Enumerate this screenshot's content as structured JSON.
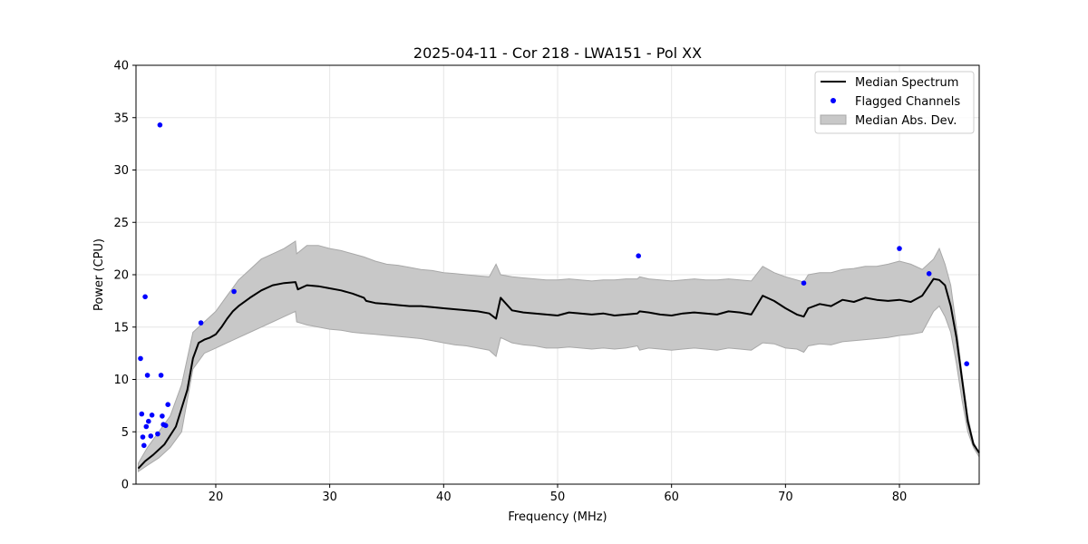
{
  "chart_data": {
    "type": "line",
    "title": "2025-04-11 - Cor 218 - LWA151 - Pol XX",
    "xlabel": "Frequency (MHz)",
    "ylabel": "Power (CPU)",
    "xlim": [
      13,
      87
    ],
    "ylim": [
      0,
      40
    ],
    "xticks": [
      20,
      30,
      40,
      50,
      60,
      70,
      80
    ],
    "yticks": [
      0,
      5,
      10,
      15,
      20,
      25,
      30,
      35,
      40
    ],
    "grid": true,
    "legend_position": "top-right",
    "colors": {
      "median": "#000000",
      "flagged": "#0000ff",
      "band_fill": "#c8c8c8",
      "band_edge": "#a8a8a8",
      "grid": "#e6e6e6"
    },
    "series": [
      {
        "name": "Median Spectrum",
        "kind": "line",
        "x": [
          13.2,
          13.8,
          14.5,
          15.5,
          16.5,
          17.5,
          18.0,
          18.5,
          19.0,
          19.5,
          20.0,
          20.5,
          21.0,
          21.5,
          22.0,
          23.0,
          24.0,
          25.0,
          26.0,
          27.0,
          27.2,
          28.0,
          29.0,
          30.0,
          31.0,
          32.0,
          33.0,
          33.2,
          34.0,
          35.0,
          36.0,
          37.0,
          38.0,
          39.0,
          40.0,
          41.0,
          42.0,
          43.0,
          44.0,
          44.6,
          45.0,
          46.0,
          47.0,
          48.0,
          49.0,
          50.0,
          51.0,
          52.0,
          53.0,
          54.0,
          55.0,
          56.0,
          57.0,
          57.2,
          58.0,
          59.0,
          60.0,
          61.0,
          62.0,
          63.0,
          64.0,
          65.0,
          66.0,
          67.0,
          68.0,
          69.0,
          70.0,
          71.0,
          71.6,
          72.0,
          73.0,
          74.0,
          75.0,
          76.0,
          77.0,
          78.0,
          79.0,
          80.0,
          81.0,
          82.0,
          83.0,
          83.5,
          84.0,
          84.5,
          85.0,
          85.5,
          86.0,
          86.5,
          87.0
        ],
        "y": [
          1.5,
          2.2,
          2.8,
          3.8,
          5.5,
          9.0,
          12.0,
          13.5,
          13.8,
          14.0,
          14.3,
          15.0,
          15.8,
          16.5,
          17.0,
          17.8,
          18.5,
          19.0,
          19.2,
          19.3,
          18.6,
          19.0,
          18.9,
          18.7,
          18.5,
          18.2,
          17.8,
          17.5,
          17.3,
          17.2,
          17.1,
          17.0,
          17.0,
          16.9,
          16.8,
          16.7,
          16.6,
          16.5,
          16.3,
          15.8,
          17.8,
          16.6,
          16.4,
          16.3,
          16.2,
          16.1,
          16.4,
          16.3,
          16.2,
          16.3,
          16.1,
          16.2,
          16.3,
          16.5,
          16.4,
          16.2,
          16.1,
          16.3,
          16.4,
          16.3,
          16.2,
          16.5,
          16.4,
          16.2,
          18.0,
          17.5,
          16.8,
          16.2,
          16.0,
          16.8,
          17.2,
          17.0,
          17.6,
          17.4,
          17.8,
          17.6,
          17.5,
          17.6,
          17.4,
          18.0,
          19.6,
          19.5,
          19.0,
          17.0,
          14.0,
          10.0,
          6.0,
          3.8,
          3.0
        ]
      },
      {
        "name": "Flagged Channels",
        "kind": "scatter",
        "points": [
          [
            13.4,
            12.0
          ],
          [
            13.5,
            6.7
          ],
          [
            13.6,
            4.5
          ],
          [
            13.7,
            3.7
          ],
          [
            13.8,
            17.9
          ],
          [
            13.9,
            5.5
          ],
          [
            14.0,
            10.4
          ],
          [
            14.1,
            6.0
          ],
          [
            14.3,
            4.6
          ],
          [
            14.4,
            6.6
          ],
          [
            14.9,
            4.8
          ],
          [
            15.1,
            34.3
          ],
          [
            15.2,
            10.4
          ],
          [
            15.3,
            6.5
          ],
          [
            15.4,
            5.7
          ],
          [
            15.6,
            5.6
          ],
          [
            15.8,
            7.6
          ],
          [
            18.7,
            15.4
          ],
          [
            21.6,
            18.4
          ],
          [
            57.1,
            21.8
          ],
          [
            71.6,
            19.2
          ],
          [
            80.0,
            22.5
          ],
          [
            82.6,
            20.1
          ],
          [
            85.9,
            11.5
          ]
        ]
      },
      {
        "name": "Median Abs. Dev.",
        "kind": "band",
        "x": [
          13.2,
          14.0,
          15.0,
          16.0,
          17.0,
          18.0,
          19.0,
          20.0,
          21.0,
          22.0,
          23.0,
          24.0,
          25.0,
          26.0,
          27.0,
          27.1,
          28.0,
          29.0,
          30.0,
          31.0,
          32.0,
          33.0,
          34.0,
          35.0,
          36.0,
          37.0,
          38.0,
          39.0,
          40.0,
          41.0,
          42.0,
          43.0,
          44.0,
          44.6,
          45.0,
          46.0,
          47.0,
          48.0,
          49.0,
          50.0,
          51.0,
          52.0,
          53.0,
          54.0,
          55.0,
          56.0,
          57.0,
          57.2,
          58.0,
          59.0,
          60.0,
          61.0,
          62.0,
          63.0,
          64.0,
          65.0,
          66.0,
          67.0,
          68.0,
          69.0,
          70.0,
          71.0,
          71.6,
          72.0,
          73.0,
          74.0,
          75.0,
          76.0,
          77.0,
          78.0,
          79.0,
          80.0,
          81.0,
          82.0,
          83.0,
          83.5,
          84.0,
          84.5,
          85.0,
          85.5,
          86.0,
          86.5,
          87.0
        ],
        "upper": [
          2.0,
          3.5,
          5.0,
          6.5,
          9.5,
          14.5,
          15.5,
          16.5,
          18.0,
          19.5,
          20.5,
          21.5,
          22.0,
          22.5,
          23.2,
          22.0,
          22.8,
          22.8,
          22.5,
          22.3,
          22.0,
          21.7,
          21.3,
          21.0,
          20.9,
          20.7,
          20.5,
          20.4,
          20.2,
          20.1,
          20.0,
          19.9,
          19.8,
          21.0,
          20.0,
          19.8,
          19.7,
          19.6,
          19.5,
          19.5,
          19.6,
          19.5,
          19.4,
          19.5,
          19.5,
          19.6,
          19.6,
          19.8,
          19.6,
          19.5,
          19.4,
          19.5,
          19.6,
          19.5,
          19.5,
          19.6,
          19.5,
          19.4,
          20.8,
          20.2,
          19.8,
          19.5,
          19.3,
          20.0,
          20.2,
          20.2,
          20.5,
          20.6,
          20.8,
          20.8,
          21.0,
          21.3,
          21.0,
          20.5,
          21.5,
          22.5,
          21.0,
          19.0,
          15.0,
          10.5,
          6.5,
          4.0,
          3.0
        ],
        "lower": [
          1.2,
          1.8,
          2.5,
          3.5,
          5.0,
          11.0,
          12.5,
          13.0,
          13.5,
          14.0,
          14.5,
          15.0,
          15.5,
          16.0,
          16.5,
          15.5,
          15.2,
          15.0,
          14.8,
          14.7,
          14.5,
          14.4,
          14.3,
          14.2,
          14.1,
          14.0,
          13.9,
          13.7,
          13.5,
          13.3,
          13.2,
          13.0,
          12.8,
          12.2,
          14.0,
          13.5,
          13.3,
          13.2,
          13.0,
          13.0,
          13.1,
          13.0,
          12.9,
          13.0,
          12.9,
          13.0,
          13.2,
          12.8,
          13.0,
          12.9,
          12.8,
          12.9,
          13.0,
          12.9,
          12.8,
          13.0,
          12.9,
          12.8,
          13.5,
          13.4,
          13.0,
          12.9,
          12.6,
          13.2,
          13.4,
          13.3,
          13.6,
          13.7,
          13.8,
          13.9,
          14.0,
          14.2,
          14.3,
          14.5,
          16.5,
          17.0,
          16.0,
          14.5,
          11.5,
          8.0,
          5.0,
          3.5,
          2.6
        ]
      }
    ],
    "legend": [
      "Median Spectrum",
      "Flagged Channels",
      "Median Abs. Dev."
    ]
  }
}
